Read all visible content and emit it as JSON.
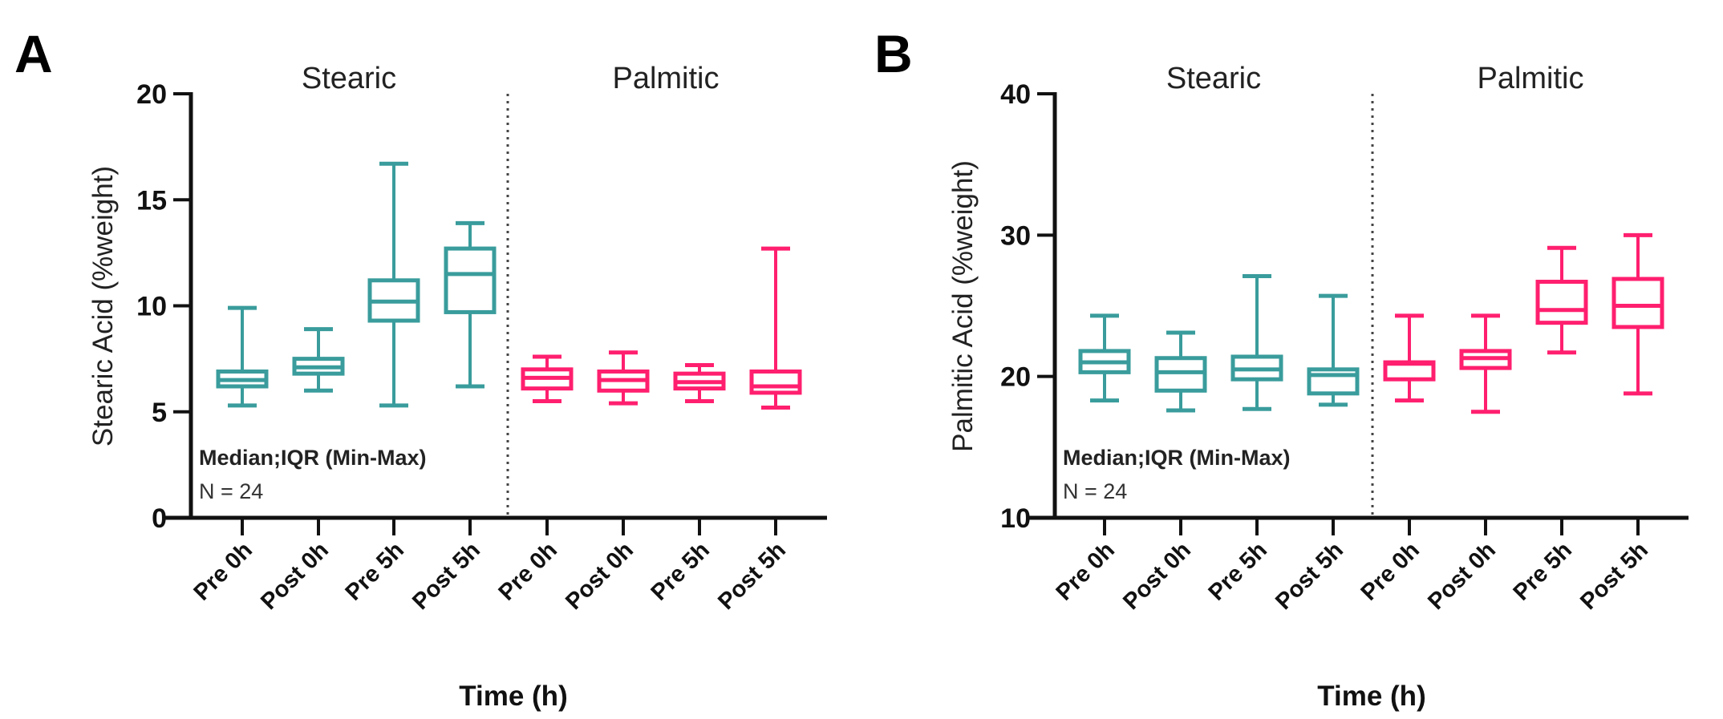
{
  "chart_data": [
    {
      "type": "box",
      "panel_label": "A",
      "ylabel": "Stearic Acid (%weight)",
      "xlabel": "Time (h)",
      "ylim": [
        0,
        20
      ],
      "yticks": [
        0,
        5,
        10,
        15,
        20
      ],
      "note_title": "Median;IQR (Min-Max)",
      "note_n": "N = 24",
      "groups": [
        {
          "name": "Stearic",
          "color": "#3A9C9C",
          "categories": [
            "Pre 0h",
            "Post 0h",
            "Pre 5h",
            "Post 5h"
          ],
          "boxes": [
            {
              "min": 5.3,
              "q1": 6.2,
              "median": 6.5,
              "q3": 6.9,
              "max": 9.9
            },
            {
              "min": 6.0,
              "q1": 6.8,
              "median": 7.1,
              "q3": 7.5,
              "max": 8.9
            },
            {
              "min": 5.3,
              "q1": 9.3,
              "median": 10.2,
              "q3": 11.2,
              "max": 16.7
            },
            {
              "min": 6.2,
              "q1": 9.7,
              "median": 11.5,
              "q3": 12.7,
              "max": 13.9
            }
          ]
        },
        {
          "name": "Palmitic",
          "color": "#FF1F6E",
          "categories": [
            "Pre 0h",
            "Post 0h",
            "Pre 5h",
            "Post 5h"
          ],
          "boxes": [
            {
              "min": 5.5,
              "q1": 6.1,
              "median": 6.6,
              "q3": 7.0,
              "max": 7.6
            },
            {
              "min": 5.4,
              "q1": 6.0,
              "median": 6.5,
              "q3": 6.9,
              "max": 7.8
            },
            {
              "min": 5.5,
              "q1": 6.1,
              "median": 6.4,
              "q3": 6.8,
              "max": 7.2
            },
            {
              "min": 5.2,
              "q1": 5.9,
              "median": 6.2,
              "q3": 6.9,
              "max": 12.7
            }
          ]
        }
      ]
    },
    {
      "type": "box",
      "panel_label": "B",
      "ylabel": "Palmitic Acid (%weight)",
      "xlabel": "Time (h)",
      "ylim": [
        10,
        40
      ],
      "yticks": [
        10,
        20,
        30,
        40
      ],
      "note_title": "Median;IQR (Min-Max)",
      "note_n": "N = 24",
      "groups": [
        {
          "name": "Stearic",
          "color": "#3A9C9C",
          "categories": [
            "Pre 0h",
            "Post 0h",
            "Pre 5h",
            "Post 5h"
          ],
          "boxes": [
            {
              "min": 18.3,
              "q1": 20.3,
              "median": 21.0,
              "q3": 21.8,
              "max": 24.3
            },
            {
              "min": 17.6,
              "q1": 19.0,
              "median": 20.3,
              "q3": 21.3,
              "max": 23.1
            },
            {
              "min": 17.7,
              "q1": 19.8,
              "median": 20.5,
              "q3": 21.4,
              "max": 27.1
            },
            {
              "min": 18.0,
              "q1": 18.8,
              "median": 20.1,
              "q3": 20.5,
              "max": 25.7
            }
          ]
        },
        {
          "name": "Palmitic",
          "color": "#FF1F6E",
          "categories": [
            "Pre 0h",
            "Post 0h",
            "Pre 5h",
            "Post 5h"
          ],
          "boxes": [
            {
              "min": 18.3,
              "q1": 19.8,
              "median": 20.9,
              "q3": 21.0,
              "max": 24.3
            },
            {
              "min": 17.5,
              "q1": 20.6,
              "median": 21.3,
              "q3": 21.8,
              "max": 24.3
            },
            {
              "min": 21.7,
              "q1": 23.8,
              "median": 24.7,
              "q3": 26.7,
              "max": 29.1
            },
            {
              "min": 18.8,
              "q1": 23.5,
              "median": 25.0,
              "q3": 26.9,
              "max": 30.0
            }
          ]
        }
      ]
    }
  ]
}
